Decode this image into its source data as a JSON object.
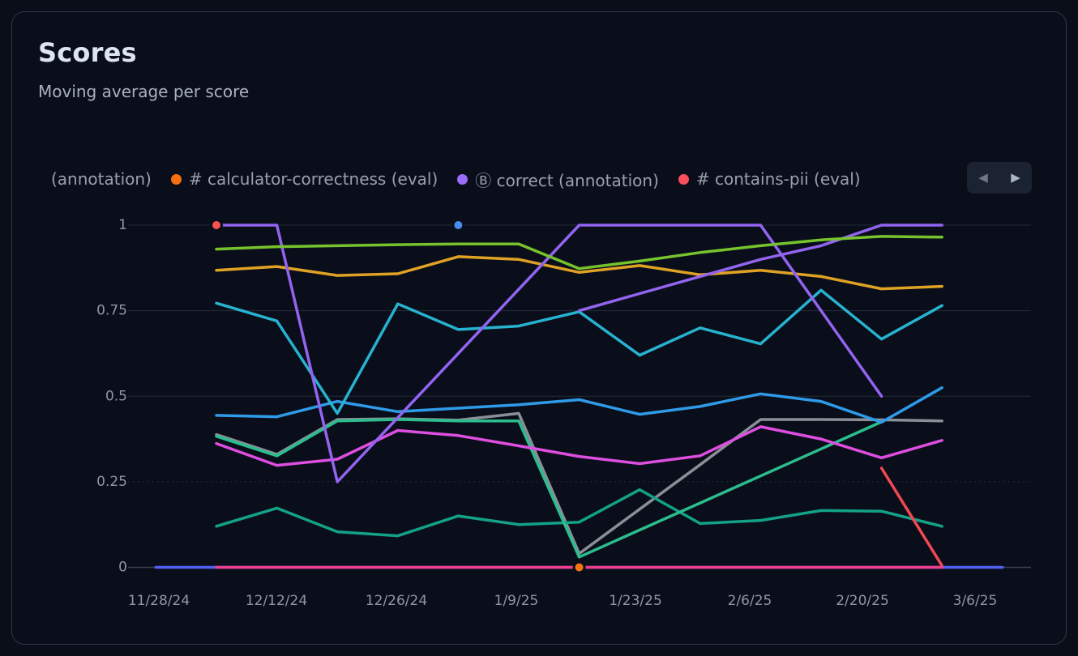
{
  "page": {
    "background": "#0a0e19"
  },
  "card": {
    "title": "Scores",
    "subtitle": "Moving average per score"
  },
  "legend": {
    "items": [
      {
        "label": "(annotation)",
        "dot": false,
        "color": null
      },
      {
        "label": "# calculator-correctness (eval)",
        "dot": true,
        "color": "#f7700f"
      },
      {
        "label": "Ⓑ correct (annotation)",
        "dot": true,
        "color": "#9b6df7"
      },
      {
        "label": "# contains-pii (eval)",
        "dot": true,
        "color": "#f74f5e"
      }
    ],
    "nav": {
      "prev_label": "◀",
      "next_label": "▶"
    }
  },
  "chart_data": {
    "type": "line",
    "title": "Scores",
    "subtitle": "Moving average per score",
    "ylim": [
      0,
      1
    ],
    "grid": "horizontal",
    "legend_position": "top",
    "x_tick_labels": [
      "11/28/24",
      "12/12/24",
      "12/26/24",
      "1/9/25",
      "1/23/25",
      "2/6/25",
      "2/20/25",
      "3/6/25"
    ],
    "y_ticks": [
      {
        "v": 0,
        "label": "0"
      },
      {
        "v": 0.25,
        "label": "0.25"
      },
      {
        "v": 0.5,
        "label": "0.5"
      },
      {
        "v": 0.75,
        "label": "0.75"
      },
      {
        "v": 1,
        "label": "1"
      }
    ],
    "x_point_dates": [
      "12/5/24",
      "12/12/24",
      "12/19/24",
      "12/26/24",
      "1/2/25",
      "1/9/25",
      "1/16/25",
      "1/23/25",
      "1/30/25",
      "2/6/25",
      "2/13/25",
      "2/20/25",
      "2/27/25"
    ],
    "series": [
      {
        "name": "indigo-zero",
        "color": "#5060f0",
        "start": -1,
        "values": [
          0,
          0,
          0,
          0,
          0,
          0,
          0,
          0,
          0,
          0,
          0,
          0,
          0,
          0,
          0
        ]
      },
      {
        "name": "pink-zero",
        "color": "#ec3f8e",
        "start": 0,
        "values": [
          0,
          0,
          0,
          0,
          0,
          0,
          0,
          0,
          0,
          0,
          0,
          0,
          0
        ]
      },
      {
        "name": "gray",
        "color": "#8a8f97",
        "start": 0,
        "values": [
          0.388,
          0.33,
          0.432,
          0.434,
          0.43,
          0.45,
          0.04,
          0.17,
          0.3,
          0.432,
          0.432,
          0.431,
          0.428
        ]
      },
      {
        "name": "teal",
        "color": "#13a287",
        "start": 0,
        "values": [
          0.12,
          0.173,
          0.104,
          0.092,
          0.15,
          0.125,
          0.132,
          0.227,
          0.128,
          0.137,
          0.166,
          0.164,
          0.12
        ]
      },
      {
        "name": "emerald",
        "color": "#2cbd8e",
        "start": 0,
        "values": [
          0.383,
          0.326,
          0.428,
          0.432,
          0.428,
          0.428,
          0.03,
          0.109,
          0.188,
          0.267,
          0.346,
          0.425
        ]
      },
      {
        "name": "magenta",
        "color": "#de4ee0",
        "start": 0,
        "values": [
          0.362,
          0.298,
          0.316,
          0.4,
          0.385,
          0.355,
          0.324,
          0.303,
          0.326,
          0.411,
          0.375,
          0.32,
          0.371
        ]
      },
      {
        "name": "blue",
        "color": "#2f9be8",
        "start": 0,
        "values": [
          0.444,
          0.44,
          0.485,
          0.455,
          0.465,
          0.475,
          0.49,
          0.447,
          0.47,
          0.507,
          0.485,
          0.424,
          0.525
        ]
      },
      {
        "name": "cyan",
        "color": "#27b2d0",
        "start": 0,
        "values": [
          0.772,
          0.72,
          0.45,
          0.77,
          0.695,
          0.705,
          0.747,
          0.62,
          0.7,
          0.653,
          0.81,
          0.667,
          0.765
        ]
      },
      {
        "name": "gold",
        "color": "#dfa224",
        "start": 0,
        "values": [
          0.868,
          0.879,
          0.853,
          0.858,
          0.908,
          0.9,
          0.862,
          0.882,
          0.855,
          0.868,
          0.85,
          0.814,
          0.821
        ]
      },
      {
        "name": "violet-main",
        "color": "#9264f0",
        "start": 0,
        "values": [
          1,
          1,
          0.25,
          0.4375,
          0.625,
          0.8125,
          1,
          1,
          1,
          1,
          0.75,
          0.5
        ]
      },
      {
        "name": "violet-rising",
        "color": "#9264f0",
        "start": 6,
        "values": [
          0.75,
          0.8,
          0.85,
          0.9,
          0.94,
          1,
          1
        ]
      },
      {
        "name": "lime",
        "color": "#76c32d",
        "start": 0,
        "values": [
          0.93,
          0.937,
          0.94,
          0.943,
          0.945,
          0.945,
          0.873,
          0.895,
          0.92,
          0.94,
          0.957,
          0.967,
          0.965
        ]
      },
      {
        "name": "red",
        "color": "#f04953",
        "start": 11,
        "values": [
          0.29,
          0.005
        ]
      }
    ],
    "markers": [
      {
        "name": "red-marker",
        "color": "#f8524f",
        "index": 0,
        "value": 1
      },
      {
        "name": "blue-marker",
        "color": "#4a8bf0",
        "index": 4,
        "value": 1
      },
      {
        "name": "orange-marker",
        "color": "#f2750f",
        "index": 6,
        "value": 0
      }
    ]
  }
}
